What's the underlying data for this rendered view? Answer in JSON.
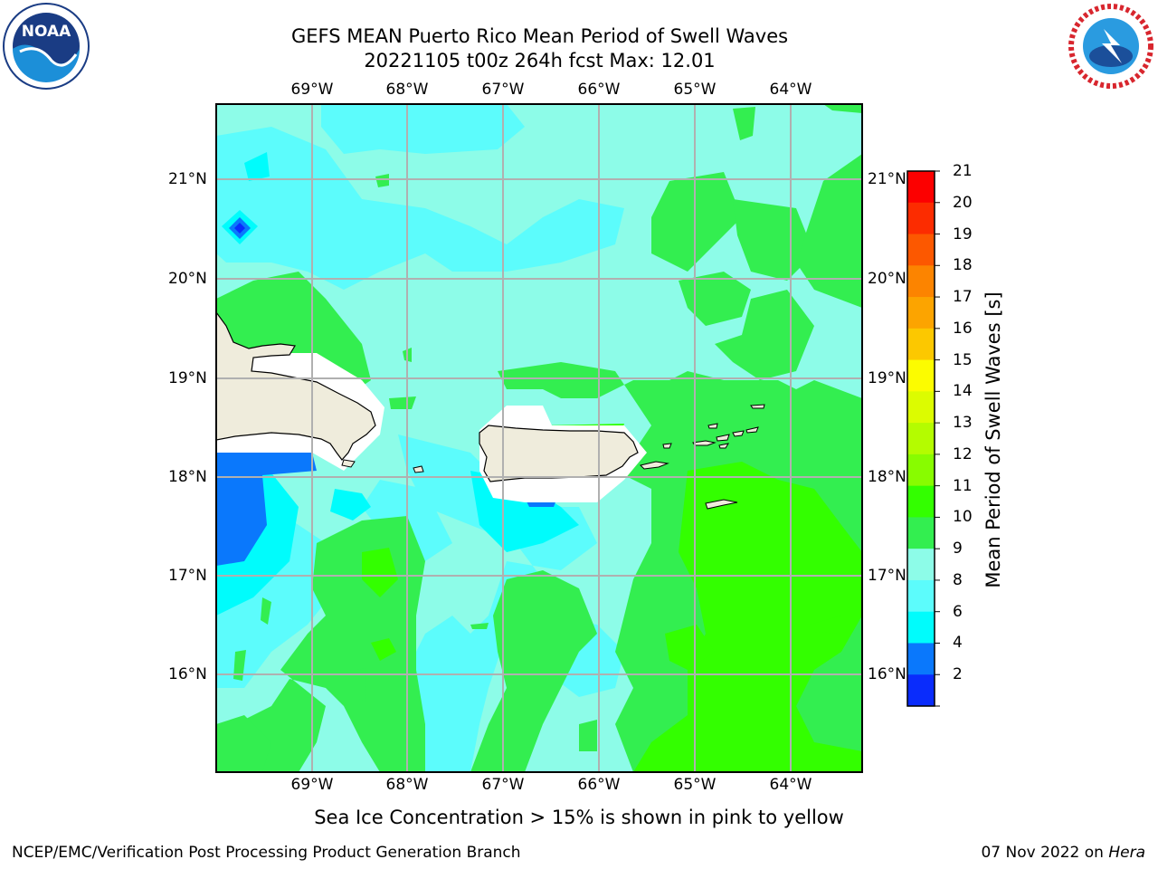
{
  "title": {
    "line1": "GEFS MEAN Puerto Rico Mean Period of Swell Waves",
    "line2": "20221105 t00z 264h fcst   Max: 12.01"
  },
  "logos": {
    "noaa": {
      "text": "NOAA",
      "icon": "noaa-logo"
    },
    "nws": {
      "text": "NATIONAL WEATHER SERVICE",
      "icon": "nws-logo"
    }
  },
  "map": {
    "longitudes": [
      "69°W",
      "68°W",
      "67°W",
      "66°W",
      "65°W",
      "64°W"
    ],
    "latitudes": [
      "21°N",
      "20°N",
      "19°N",
      "18°N",
      "17°N",
      "16°N"
    ],
    "land_color": "#efecdc",
    "ocean_colors": {
      "lt_cyan": "#8dfce8",
      "cyan_light": "#5cfcfc",
      "cyan": "#00fcfc",
      "blue": "#0a78fc",
      "dark_blue": "#0a2cfc",
      "green_light": "#33ee50",
      "green": "#33ff00"
    }
  },
  "colorbar": {
    "label": "Mean Period of Swell Waves [s]",
    "ticks": [
      "21",
      "20",
      "19",
      "18",
      "17",
      "16",
      "15",
      "14",
      "13",
      "12",
      "11",
      "10",
      "9",
      "8",
      "6",
      "4",
      "2"
    ],
    "colors": [
      "#fc0000",
      "#fc2c00",
      "#fc5800",
      "#fc8400",
      "#fca400",
      "#fcc800",
      "#fcfc00",
      "#dcfc00",
      "#b4fc00",
      "#88fc00",
      "#33ff00",
      "#33ee50",
      "#8dfce8",
      "#5cfcfc",
      "#00fcfc",
      "#0a78fc",
      "#0a2cfc"
    ]
  },
  "note": "Sea Ice Concentration > 15% is shown in pink to yellow",
  "footer": {
    "left": "NCEP/EMC/Verification Post Processing Product Generation Branch",
    "right_prefix": "07 Nov 2022 on ",
    "right_italic": "Hera"
  }
}
